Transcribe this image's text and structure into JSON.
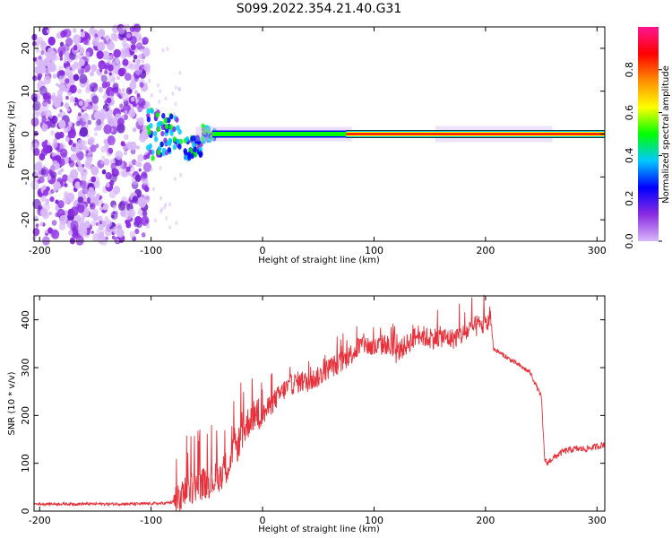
{
  "figure_title": "S099.2022.354.21.40.G31",
  "chart_data": [
    {
      "type": "heatmap",
      "xlabel": "Height of straight line (km)",
      "ylabel": "Frequency (Hz)",
      "xlim": [
        -205,
        307
      ],
      "ylim": [
        -25,
        25
      ],
      "xticks": [
        -200,
        -100,
        0,
        100,
        200,
        300
      ],
      "yticks": [
        -20,
        -10,
        0,
        10,
        20
      ],
      "colorbar": {
        "label": "Normalized spectral amplitude",
        "range": [
          0,
          1
        ],
        "ticks": [
          "0.0",
          "0.2",
          "0.4",
          "0.6",
          "0.8"
        ],
        "colors": [
          "#ffffff",
          "#d8b8f8",
          "#8a2be2",
          "#0000ff",
          "#00c8ff",
          "#00ff00",
          "#ffff00",
          "#ff8c00",
          "#ff0000",
          "#ff1493"
        ]
      },
      "features": {
        "noise_region_km": [
          -205,
          -103
        ],
        "carrier_frequency_hz": 0,
        "strong_carrier_from_km": 75
      }
    },
    {
      "type": "line",
      "xlabel": "Height of straight line (km)",
      "ylabel": "SNR (10 * v/v)",
      "xlim": [
        -205,
        307
      ],
      "ylim": [
        0,
        450
      ],
      "xticks": [
        -200,
        -100,
        0,
        100,
        200,
        300
      ],
      "yticks": [
        0,
        100,
        200,
        300,
        400
      ],
      "color": "#e8303a",
      "x": [
        -205,
        -180,
        -150,
        -120,
        -90,
        -75,
        -70,
        -60,
        -50,
        -40,
        -30,
        -20,
        -10,
        0,
        10,
        20,
        30,
        40,
        50,
        60,
        70,
        80,
        90,
        100,
        110,
        120,
        130,
        140,
        150,
        160,
        170,
        180,
        190,
        200,
        205,
        207,
        220,
        240,
        250,
        253,
        255,
        260,
        270,
        280,
        290,
        300,
        307
      ],
      "y": [
        15,
        15,
        15,
        15,
        16,
        20,
        40,
        55,
        60,
        70,
        100,
        150,
        200,
        200,
        230,
        255,
        270,
        270,
        280,
        300,
        310,
        330,
        350,
        340,
        350,
        330,
        350,
        370,
        360,
        365,
        360,
        370,
        385,
        390,
        400,
        340,
        320,
        290,
        240,
        110,
        100,
        110,
        125,
        130,
        130,
        135,
        140
      ]
    }
  ]
}
